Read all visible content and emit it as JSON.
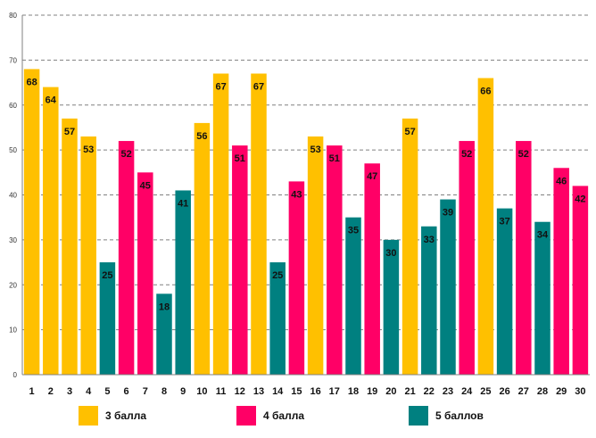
{
  "chart_data": {
    "type": "bar",
    "title": "",
    "xlabel": "",
    "ylabel": "",
    "ylim": [
      0,
      80
    ],
    "yticks": [
      0,
      10,
      20,
      30,
      40,
      50,
      60,
      70,
      80
    ],
    "grid": true,
    "categories": [
      "1",
      "2",
      "3",
      "4",
      "5",
      "6",
      "7",
      "8",
      "9",
      "10",
      "11",
      "12",
      "13",
      "14",
      "15",
      "16",
      "17",
      "18",
      "19",
      "20",
      "21",
      "22",
      "23",
      "24",
      "25",
      "26",
      "27",
      "28",
      "29",
      "30"
    ],
    "values": [
      68,
      64,
      57,
      53,
      25,
      52,
      45,
      18,
      41,
      56,
      67,
      51,
      67,
      25,
      43,
      53,
      51,
      35,
      47,
      30,
      57,
      33,
      39,
      52,
      66,
      37,
      52,
      34,
      46,
      42
    ],
    "groups": [
      "3",
      "3",
      "3",
      "3",
      "5",
      "4",
      "4",
      "5",
      "5",
      "3",
      "3",
      "4",
      "3",
      "5",
      "4",
      "3",
      "4",
      "5",
      "4",
      "5",
      "3",
      "5",
      "5",
      "4",
      "3",
      "5",
      "4",
      "5",
      "4",
      "4"
    ],
    "legend": [
      {
        "key": "3",
        "label": "3 балла",
        "color": "#FFC000"
      },
      {
        "key": "4",
        "label": "4 балла",
        "color": "#FF0066"
      },
      {
        "key": "5",
        "label": "5 баллов",
        "color": "#008080"
      }
    ],
    "legend_position": "bottom"
  }
}
